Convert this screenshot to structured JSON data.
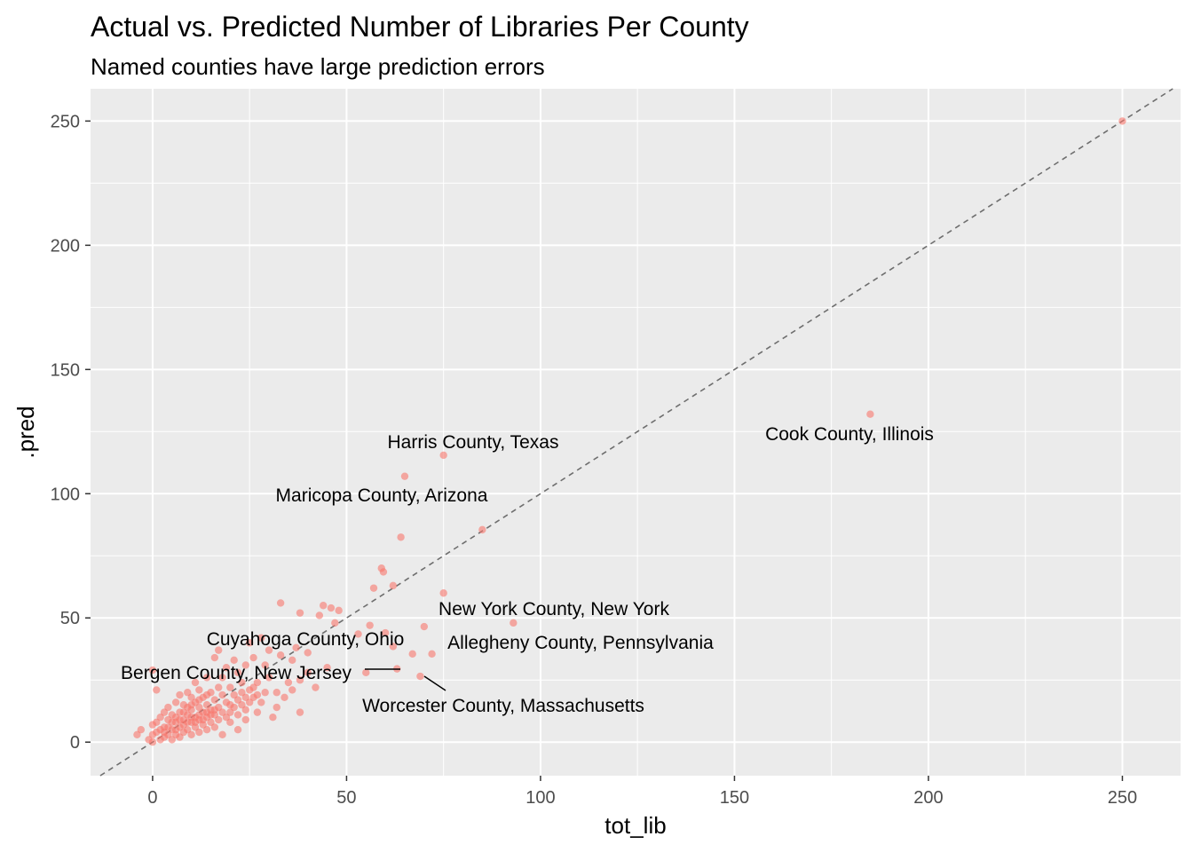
{
  "chart_data": {
    "type": "scatter",
    "title": "Actual vs. Predicted Number of Libraries Per County",
    "subtitle": "Named counties have large prediction errors",
    "xlabel": "tot_lib",
    "ylabel": ".pred",
    "xlim": [
      -16,
      265
    ],
    "ylim": [
      -13.5,
      263
    ],
    "x_ticks": [
      0,
      50,
      100,
      150,
      200,
      250
    ],
    "y_ticks": [
      0,
      50,
      100,
      150,
      200,
      250
    ],
    "x_tick_labels": [
      "0",
      "50",
      "100",
      "150",
      "200",
      "250"
    ],
    "y_tick_labels": [
      "0",
      "50",
      "100",
      "150",
      "200",
      "250"
    ],
    "grid": true,
    "reference_line": {
      "type": "identity",
      "slope": 1,
      "intercept": 0,
      "style": "dashed"
    },
    "colors": {
      "point": "#F8766D",
      "panel": "#EBEBEB",
      "grid": "#FFFFFF",
      "reference_line": "#6E6E6E"
    },
    "labeled_points": [
      {
        "label": "Cook County, Illinois",
        "x": 185,
        "y": 132
      },
      {
        "label": "Harris County, Texas",
        "x": 75,
        "y": 115.5
      },
      {
        "label": "Maricopa County, Arizona",
        "x": 65,
        "y": 107
      },
      {
        "label": "New York County, New York",
        "x": 75,
        "y": 60
      },
      {
        "label": "Allegheny County, Pennsylvania",
        "x": 93,
        "y": 48
      },
      {
        "label": "Cuyahoga County, Ohio",
        "x": 70,
        "y": 46.5
      },
      {
        "label": "Bergen County, New Jersey",
        "x": 63,
        "y": 29.5
      },
      {
        "label": "Worcester County, Massachusetts",
        "x": 69,
        "y": 26.5
      }
    ],
    "points": [
      [
        250,
        250
      ],
      [
        185,
        132
      ],
      [
        75,
        115.5
      ],
      [
        65,
        107
      ],
      [
        85,
        85.5
      ],
      [
        64,
        82.5
      ],
      [
        75,
        60
      ],
      [
        93,
        48
      ],
      [
        70,
        46.5
      ],
      [
        59,
        70
      ],
      [
        59.5,
        68.5
      ],
      [
        62,
        63
      ],
      [
        57,
        62
      ],
      [
        72,
        35.5
      ],
      [
        67,
        35.5
      ],
      [
        62,
        38.5
      ],
      [
        63,
        29.5
      ],
      [
        69,
        26.5
      ],
      [
        55,
        28
      ],
      [
        33,
        56
      ],
      [
        38,
        52
      ],
      [
        44,
        55
      ],
      [
        46,
        54
      ],
      [
        43,
        51
      ],
      [
        48,
        53
      ],
      [
        47,
        48
      ],
      [
        56,
        47
      ],
      [
        53,
        43.5
      ],
      [
        60,
        44
      ],
      [
        37,
        38
      ],
      [
        40,
        36
      ],
      [
        36,
        33
      ],
      [
        33,
        35
      ],
      [
        28,
        42
      ],
      [
        30,
        37
      ],
      [
        25,
        40
      ],
      [
        26,
        34
      ],
      [
        29,
        31
      ],
      [
        45,
        30
      ],
      [
        40,
        28
      ],
      [
        38,
        25
      ],
      [
        42,
        22
      ],
      [
        36,
        21
      ],
      [
        34,
        18
      ],
      [
        38,
        12
      ],
      [
        32,
        14
      ],
      [
        31,
        10
      ],
      [
        28,
        16
      ],
      [
        27,
        12
      ],
      [
        20,
        15
      ],
      [
        17,
        37
      ],
      [
        16,
        34
      ],
      [
        19,
        30
      ],
      [
        22,
        28
      ],
      [
        21,
        33
      ],
      [
        24,
        31
      ],
      [
        18,
        26
      ],
      [
        23,
        24
      ],
      [
        25,
        21
      ],
      [
        26,
        18
      ],
      [
        24,
        9
      ],
      [
        22,
        5
      ],
      [
        20,
        8
      ],
      [
        18,
        3
      ],
      [
        30,
        26
      ],
      [
        32,
        20
      ],
      [
        35,
        24
      ],
      [
        27,
        24
      ],
      [
        29,
        20
      ],
      [
        0,
        29
      ],
      [
        1,
        21
      ],
      [
        -4,
        3
      ],
      [
        -3,
        5
      ],
      [
        -1,
        1
      ],
      [
        0,
        0
      ],
      [
        0,
        3
      ],
      [
        0,
        7
      ],
      [
        1,
        4
      ],
      [
        1,
        8
      ],
      [
        2,
        1
      ],
      [
        2,
        5
      ],
      [
        2,
        10
      ],
      [
        3,
        2
      ],
      [
        3,
        6
      ],
      [
        3,
        12
      ],
      [
        4,
        3
      ],
      [
        4,
        9
      ],
      [
        4,
        14
      ],
      [
        5,
        1
      ],
      [
        5,
        5
      ],
      [
        5,
        11
      ],
      [
        6,
        3
      ],
      [
        6,
        8
      ],
      [
        6,
        16
      ],
      [
        7,
        2
      ],
      [
        7,
        6
      ],
      [
        7,
        12
      ],
      [
        7,
        19
      ],
      [
        8,
        4
      ],
      [
        8,
        9
      ],
      [
        8,
        15
      ],
      [
        9,
        5
      ],
      [
        9,
        11
      ],
      [
        9,
        20
      ],
      [
        10,
        3
      ],
      [
        10,
        8
      ],
      [
        10,
        13
      ],
      [
        10,
        18
      ],
      [
        11,
        6
      ],
      [
        11,
        10
      ],
      [
        11,
        16
      ],
      [
        11,
        24
      ],
      [
        12,
        4
      ],
      [
        12,
        9
      ],
      [
        12,
        14
      ],
      [
        12,
        21
      ],
      [
        13,
        7
      ],
      [
        13,
        12
      ],
      [
        13,
        18
      ],
      [
        14,
        5
      ],
      [
        14,
        10
      ],
      [
        14,
        15
      ],
      [
        14,
        26
      ],
      [
        15,
        8
      ],
      [
        15,
        13
      ],
      [
        15,
        20
      ],
      [
        16,
        6
      ],
      [
        16,
        11
      ],
      [
        16,
        17
      ],
      [
        17,
        9
      ],
      [
        17,
        14
      ],
      [
        17,
        22
      ],
      [
        18,
        12
      ],
      [
        18,
        19
      ],
      [
        19,
        10
      ],
      [
        19,
        16
      ],
      [
        20,
        12
      ],
      [
        20,
        22
      ],
      [
        21,
        14
      ],
      [
        21,
        19
      ],
      [
        22,
        11
      ],
      [
        22,
        17
      ],
      [
        23,
        15
      ],
      [
        23,
        20
      ],
      [
        24,
        13
      ],
      [
        24,
        18
      ],
      [
        25,
        16
      ],
      [
        26,
        22
      ],
      [
        27,
        19
      ],
      [
        3,
        4
      ],
      [
        4,
        6
      ],
      [
        5,
        8
      ],
      [
        6,
        5
      ],
      [
        7,
        9
      ],
      [
        8,
        7
      ],
      [
        9,
        8
      ],
      [
        10,
        10
      ],
      [
        11,
        8
      ],
      [
        12,
        11
      ],
      [
        13,
        9
      ],
      [
        14,
        12
      ],
      [
        15,
        11
      ],
      [
        16,
        13
      ],
      [
        6,
        10
      ],
      [
        8,
        12
      ],
      [
        10,
        15
      ],
      [
        12,
        17
      ],
      [
        14,
        19
      ],
      [
        9,
        14
      ]
    ]
  }
}
